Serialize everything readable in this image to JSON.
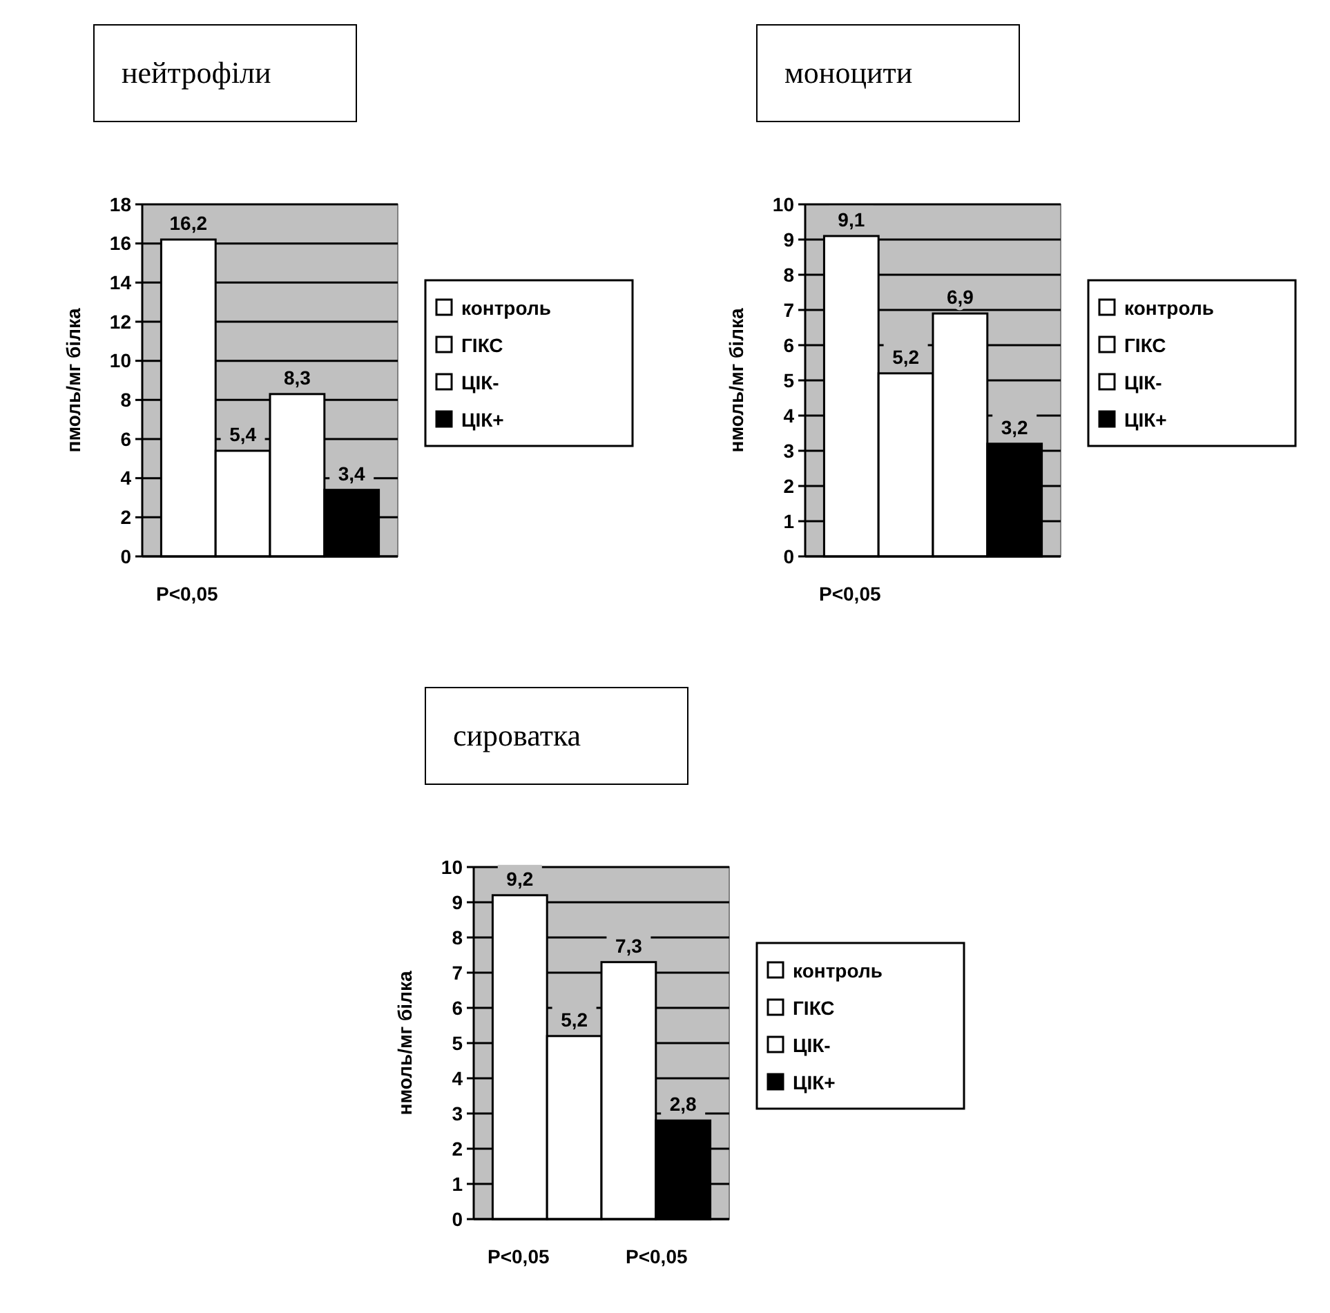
{
  "chart_data": [
    {
      "type": "bar",
      "title": "нейтрофіли",
      "ylabel": "пмоль/мг білка",
      "categories": [
        null
      ],
      "series": [
        {
          "name": "контроль",
          "color": "#ffffff",
          "values": [
            16.2
          ],
          "value_labels": [
            "16,2"
          ]
        },
        {
          "name": "ГІКС",
          "color": "#ffffff",
          "values": [
            5.4
          ],
          "value_labels": [
            "5,4"
          ]
        },
        {
          "name": "ЦІК-",
          "color": "#ffffff",
          "values": [
            8.3
          ],
          "value_labels": [
            "8,3"
          ]
        },
        {
          "name": "ЦІК+",
          "color": "#000000",
          "values": [
            3.4
          ],
          "value_labels": [
            "3,4"
          ]
        }
      ],
      "ylim": [
        0,
        18
      ],
      "yticks": [
        0,
        2,
        4,
        6,
        8,
        10,
        12,
        14,
        16,
        18
      ],
      "grid": "y",
      "legend": "right",
      "annotations": [
        "P<0,05"
      ]
    },
    {
      "type": "bar",
      "title": "моноцити",
      "ylabel": "нмоль/мг білка",
      "categories": [
        null
      ],
      "series": [
        {
          "name": "контроль",
          "color": "#ffffff",
          "values": [
            9.1
          ],
          "value_labels": [
            "9,1"
          ]
        },
        {
          "name": "ГІКС",
          "color": "#ffffff",
          "values": [
            5.2
          ],
          "value_labels": [
            "5,2"
          ]
        },
        {
          "name": "ЦІК-",
          "color": "#ffffff",
          "values": [
            6.9
          ],
          "value_labels": [
            "6,9"
          ]
        },
        {
          "name": "ЦІК+",
          "color": "#000000",
          "values": [
            3.2
          ],
          "value_labels": [
            "3,2"
          ]
        }
      ],
      "ylim": [
        0,
        10
      ],
      "yticks": [
        0,
        1,
        2,
        3,
        4,
        5,
        6,
        7,
        8,
        9,
        10
      ],
      "grid": "y",
      "legend": "right",
      "annotations": [
        "P<0,05"
      ]
    },
    {
      "type": "bar",
      "title": "сироватка",
      "ylabel": "нмоль/мг білка",
      "categories": [
        null
      ],
      "series": [
        {
          "name": "контроль",
          "color": "#ffffff",
          "values": [
            9.2
          ],
          "value_labels": [
            "9,2"
          ]
        },
        {
          "name": "ГІКС",
          "color": "#ffffff",
          "values": [
            5.2
          ],
          "value_labels": [
            "5,2"
          ]
        },
        {
          "name": "ЦІК-",
          "color": "#ffffff",
          "values": [
            7.3
          ],
          "value_labels": [
            "7,3"
          ]
        },
        {
          "name": "ЦІК+",
          "color": "#000000",
          "values": [
            2.8
          ],
          "value_labels": [
            "2,8"
          ]
        }
      ],
      "ylim": [
        0,
        10
      ],
      "yticks": [
        0,
        1,
        2,
        3,
        4,
        5,
        6,
        7,
        8,
        9,
        10
      ],
      "grid": "y",
      "legend": "right",
      "annotations": [
        "P<0,05",
        "P<0,05"
      ]
    }
  ]
}
